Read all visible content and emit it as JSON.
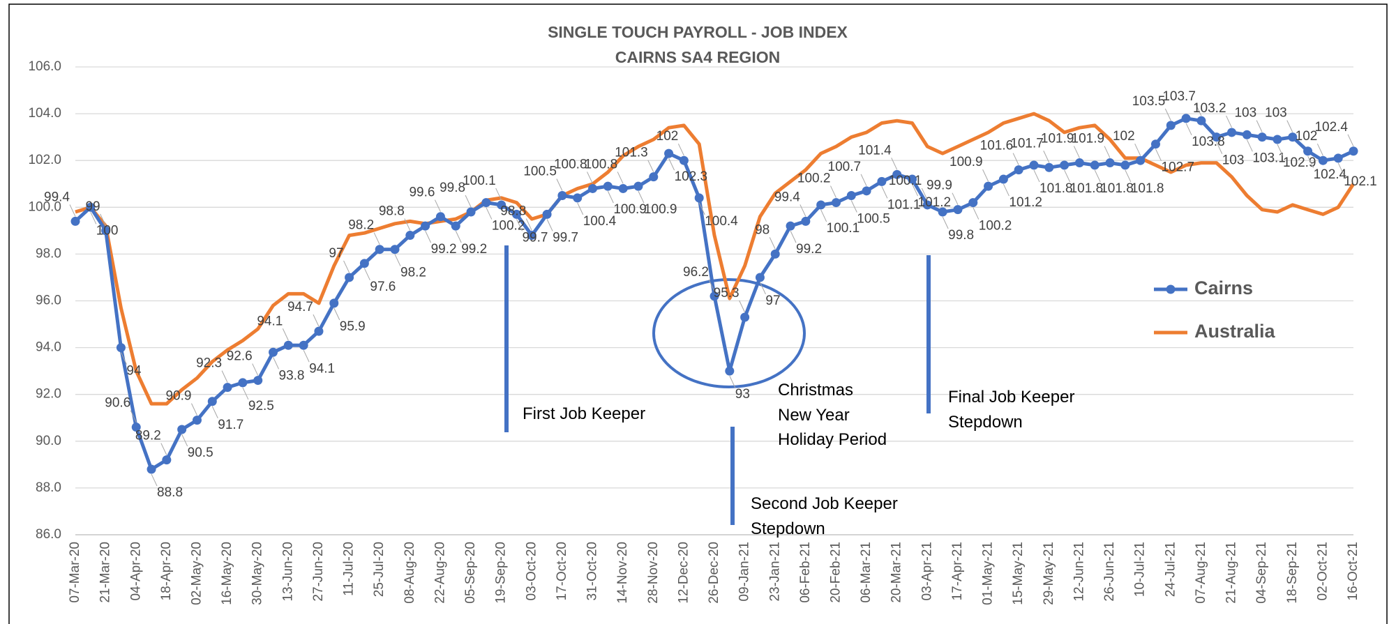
{
  "chart_data": {
    "type": "line",
    "title": [
      "SINGLE TOUCH PAYROLL - JOB INDEX",
      "CAIRNS SA4 REGION"
    ],
    "categories": [
      "07-Mar-20",
      null,
      "21-Mar-20",
      null,
      "04-Apr-20",
      null,
      "18-Apr-20",
      null,
      "02-May-20",
      null,
      "16-May-20",
      null,
      "30-May-20",
      null,
      "13-Jun-20",
      null,
      "27-Jun-20",
      null,
      "11-Jul-20",
      null,
      "25-Jul-20",
      null,
      "08-Aug-20",
      null,
      "22-Aug-20",
      null,
      "05-Sep-20",
      null,
      "19-Sep-20",
      null,
      "03-Oct-20",
      null,
      "17-Oct-20",
      null,
      "31-Oct-20",
      null,
      "14-Nov-20",
      null,
      "28-Nov-20",
      null,
      "12-Dec-20",
      null,
      "26-Dec-20",
      null,
      "09-Jan-21",
      null,
      "23-Jan-21",
      null,
      "06-Feb-21",
      null,
      "20-Feb-21",
      null,
      "06-Mar-21",
      null,
      "20-Mar-21",
      null,
      "03-Apr-21",
      null,
      "17-Apr-21",
      null,
      "01-May-21",
      null,
      "15-May-21",
      null,
      "29-May-21",
      null,
      "12-Jun-21",
      null,
      "26-Jun-21",
      null,
      "10-Jul-21",
      null,
      "24-Jul-21",
      null,
      "07-Aug-21",
      null,
      "21-Aug-21",
      null,
      "04-Sep-21",
      null,
      "18-Sep-21",
      null,
      "02-Oct-21",
      null,
      "16-Oct-21"
    ],
    "series": [
      {
        "name": "Cairns",
        "color": "#4472c4",
        "markers": true,
        "data_labels": true,
        "values": [
          99.4,
          100.0,
          99.0,
          94.0,
          90.6,
          88.8,
          89.2,
          90.5,
          90.9,
          91.7,
          92.3,
          92.5,
          92.6,
          93.8,
          94.1,
          94.1,
          94.7,
          95.9,
          97.0,
          97.6,
          98.2,
          98.2,
          98.8,
          99.2,
          99.6,
          99.2,
          99.8,
          100.2,
          100.1,
          99.7,
          98.8,
          99.7,
          100.5,
          100.4,
          100.8,
          100.9,
          100.8,
          100.9,
          101.3,
          102.3,
          102.0,
          100.4,
          96.2,
          93.0,
          95.3,
          97.0,
          98.0,
          99.2,
          99.4,
          100.1,
          100.2,
          100.5,
          100.7,
          101.1,
          101.4,
          101.2,
          100.1,
          99.8,
          99.9,
          100.2,
          100.9,
          101.2,
          101.6,
          101.8,
          101.7,
          101.8,
          101.9,
          101.8,
          101.9,
          101.8,
          102.0,
          102.7,
          103.5,
          103.8,
          103.7,
          103.0,
          103.2,
          103.1,
          103.0,
          102.9,
          103.0,
          102.4,
          102.0,
          102.1,
          102.4
        ]
      },
      {
        "name": "Australia",
        "color": "#ed7d31",
        "markers": false,
        "data_labels": false,
        "values": [
          99.8,
          100.0,
          99.2,
          95.7,
          93.0,
          91.6,
          91.6,
          92.2,
          92.7,
          93.4,
          93.9,
          94.3,
          94.8,
          95.8,
          96.3,
          96.3,
          95.9,
          97.5,
          98.8,
          98.9,
          99.1,
          99.3,
          99.4,
          99.3,
          99.4,
          99.5,
          99.8,
          100.3,
          100.4,
          100.2,
          99.5,
          99.7,
          100.5,
          100.8,
          101.0,
          101.5,
          102.2,
          102.6,
          102.9,
          103.4,
          103.5,
          102.7,
          98.8,
          96.1,
          97.5,
          99.6,
          100.6,
          101.1,
          101.6,
          102.3,
          102.6,
          103.0,
          103.2,
          103.6,
          103.7,
          103.6,
          102.6,
          102.3,
          102.6,
          102.9,
          103.2,
          103.6,
          103.8,
          104.0,
          103.7,
          103.2,
          103.4,
          103.5,
          102.9,
          102.1,
          102.1,
          101.8,
          101.5,
          101.8,
          101.9,
          101.9,
          101.3,
          100.5,
          99.9,
          99.8,
          100.1,
          99.9,
          99.7,
          100.0,
          101.0
        ]
      }
    ],
    "ylim": [
      86,
      106
    ],
    "yticks": [
      {
        "value": 86,
        "label": "86.0"
      },
      {
        "value": 88,
        "label": "88.0"
      },
      {
        "value": 90,
        "label": "90.0"
      },
      {
        "value": 92,
        "label": "92.0"
      },
      {
        "value": 94,
        "label": "94.0"
      },
      {
        "value": 96,
        "label": "96.0"
      },
      {
        "value": 98,
        "label": "98.0"
      },
      {
        "value": 100,
        "label": "100.0"
      },
      {
        "value": 102,
        "label": "102.0"
      },
      {
        "value": 104,
        "label": "104.0"
      },
      {
        "value": 106,
        "label": "106.0"
      }
    ],
    "grid": true,
    "legend": "right",
    "annotations": [
      {
        "lines": [
          "First Job Keeper"
        ]
      },
      {
        "lines": [
          "Second Job Keeper",
          "Stepdown"
        ]
      },
      {
        "lines": [
          "Christmas",
          "New Year",
          "Holiday Period"
        ]
      },
      {
        "lines": [
          "Final Job Keeper",
          "Stepdown"
        ]
      }
    ]
  }
}
